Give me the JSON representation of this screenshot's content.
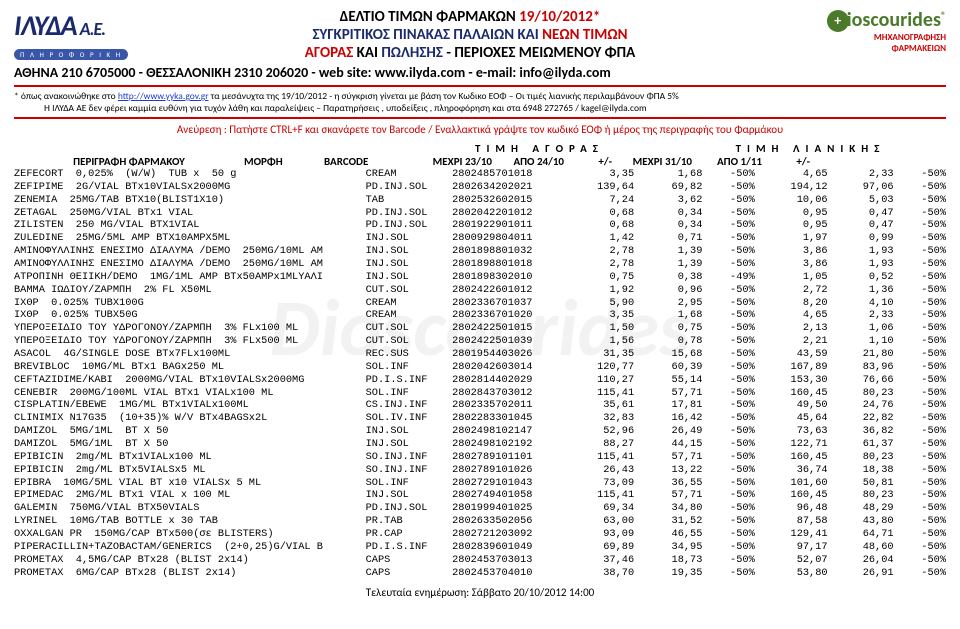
{
  "header": {
    "title_prefix": "ΔΕΛΤΙΟ ΤΙΜΩΝ ΦΑΡΜΑΚΩΝ ",
    "title_date": "19/10/2012*",
    "line2a": "ΣΥΓΚΡΙΤΙΚΟΣ ΠΙΝΑΚΑΣ ΠΑΛΑΙΩΝ",
    "line2b": " ΚΑΙ ",
    "line2c": "ΝΕΩΝ ΤΙΜΩΝ",
    "line3a": "ΑΓΟΡΑΣ",
    "line3b": " ΚΑΙ ",
    "line3c": "ΠΩΛΗΣΗΣ",
    "line3d": "  -  ΠΕΡΙΟΧΕΣ ΜΕΙΩΜΕΝΟΥ ΦΠΑ",
    "contact": "ΑΘΗΝΑ 210 6705000  -  ΘΕΣΣΑΛΟΝΙΚΗ 2310 206020  -  web site: www.ilyda.com  -  e-mail: info@ilyda.com",
    "left_logo": "ΙΛΥΔΑ",
    "left_logo_ae": " Α.Ε.",
    "left_logo_tag": "Π Λ Η Ρ Ο Φ Ο Ρ Ι Κ Η",
    "right_logo": "ioscourides",
    "right_sub1": "ΜΗΧΑΝΟΓΡΑΦΗΣΗ",
    "right_sub2": "ΦΑΡΜΑΚΕΙΩΝ"
  },
  "disclaimer": {
    "l1a": "* όπως ανακοινώθηκε στο ",
    "l1link": "http://www.yyka.gov.gr",
    "l1b": " τα μεσάνυχτα της 19/10/2012 - η σύγκριση γίνεται με βάση τον Κωδικο ΕΟΦ – Οι τιμές λιανικής περιλαμβάνουν ΦΠΑ 5%",
    "l2": "Η ΙΛΥΔΑ ΑΕ δεν φέρει καμμία ευθύνη για τυχόν λάθη και παραλείψεις  –  Παρατηρήσεις , υποδείξεις , πληροφόρηση και στα  6948 272765 / kagel@ilyda.com"
  },
  "search_line": "Ανεύρεση :   Πατήστε CTRL+F  και σκανάρετε τον Barcode   /   Εναλλακτικά γράψτε τον κωδικό ΕΟΦ ή μέρος της περιγραφής του Φαρμάκου",
  "groups": {
    "g1": "ΤΙΜΗ  ΑΓΟΡΑΣ",
    "g2": "ΤΙΜΗ  ΛΙΑΝΙΚΗΣ"
  },
  "columns": [
    "ΠΕΡΙΓΡΑΦΗ  ΦΑΡΜΑΚΟΥ",
    "ΜΟΡΦΗ",
    "BARCODE",
    "ΜΕΧΡΙ 23/10",
    "ΑΠΟ 24/10",
    "+/-",
    "ΜΕΧΡΙ 31/10",
    "ΑΠΟ 1/11",
    "+/-"
  ],
  "rows": [
    [
      "ZEFECORT  0,025%  (W/W)  TUB x  50 g",
      "CREAM",
      "2802485701018",
      "3,35",
      "1,68",
      "-50%",
      "4,65",
      "2,33",
      "-50%"
    ],
    [
      "ZEFIPIME  2G/VIAL BTx10VIALSx2000MG",
      "PD.INJ.SOL",
      "2802634202021",
      "139,64",
      "69,82",
      "-50%",
      "194,12",
      "97,06",
      "-50%"
    ],
    [
      "ZENEMIA  25MG/TAB BTX10(BLIST1X10)",
      "TAB",
      "2802532602015",
      "7,24",
      "3,62",
      "-50%",
      "10,06",
      "5,03",
      "-50%"
    ],
    [
      "ZETAGAL  250MG/VIAL BTx1 VIAL",
      "PD.INJ.SOL",
      "2802042201012",
      "0,68",
      "0,34",
      "-50%",
      "0,95",
      "0,47",
      "-50%"
    ],
    [
      "ZILISTEN  250 MG/VIAL BTX1VIAL",
      "PD.INJ.SOL",
      "2801922901011",
      "0,68",
      "0,34",
      "-50%",
      "0,95",
      "0,47",
      "-50%"
    ],
    [
      "ZULEDINE  25MG/5ML AMP BTX10AMPX5ML",
      "INJ.SOL",
      "2800929804011",
      "1,42",
      "0,71",
      "-50%",
      "1,97",
      "0,99",
      "-50%"
    ],
    [
      "ΑΜΙΝΟΦΥΛΛΙΝΗΣ ΕΝΕΣΙΜΟ ΔΙΑΛΥΜΑ /DEMO  250MG/10ML AM",
      "INJ.SOL",
      "2801898801032",
      "2,78",
      "1,39",
      "-50%",
      "3,86",
      "1,93",
      "-50%"
    ],
    [
      "ΑΜΙΝΟΦΥΛΛΙΝΗΣ ΕΝΕΣΙΜΟ ΔΙΑΛΥΜΑ /DEMO  250MG/10ML AM",
      "INJ.SOL",
      "2801898801018",
      "2,78",
      "1,39",
      "-50%",
      "3,86",
      "1,93",
      "-50%"
    ],
    [
      "ΑΤΡΟΠΙΝΗ ΘΕΙΙΚΗ/DEMO  1MG/1ML AMP BTx50AMPx1MLΥΑΛΙ",
      "INJ.SOL",
      "2801898302010",
      "0,75",
      "0,38",
      "-49%",
      "1,05",
      "0,52",
      "-50%"
    ],
    [
      "ΒΑΜΜΑ ΙΩΔΙΟΥ/ΖΑΡΜΠΗ  2% FL X50ML",
      "CUT.SOL",
      "2802422601012",
      "1,92",
      "0,96",
      "-50%",
      "2,72",
      "1,36",
      "-50%"
    ],
    [
      "ΙΧΘΡ  0.025% TUBX100G",
      "CREAM",
      "2802336701037",
      "5,90",
      "2,95",
      "-50%",
      "8,20",
      "4,10",
      "-50%"
    ],
    [
      "ΙΧΘΡ  0.025% TUBX50G",
      "CREAM",
      "2802336701020",
      "3,35",
      "1,68",
      "-50%",
      "4,65",
      "2,33",
      "-50%"
    ],
    [
      "ΥΠΕΡΟΞΕΙΔΙΟ ΤΟΥ ΥΔΡΟΓΟΝΟΥ/ΖΑΡΜΠΗ  3% FLx100 ML",
      "CUT.SOL",
      "2802422501015",
      "1,50",
      "0,75",
      "-50%",
      "2,13",
      "1,06",
      "-50%"
    ],
    [
      "ΥΠΕΡΟΞΕΙΔΙΟ ΤΟΥ ΥΔΡΟΓΟΝΟΥ/ΖΑΡΜΠΗ  3% FLx500 ML",
      "CUT.SOL",
      "2802422501039",
      "1,56",
      "0,78",
      "-50%",
      "2,21",
      "1,10",
      "-50%"
    ],
    [
      "ASACOL  4G/SINGLE DOSE BTx7FLx100ML",
      "REC.SUS",
      "2801954403026",
      "31,35",
      "15,68",
      "-50%",
      "43,59",
      "21,80",
      "-50%"
    ],
    [
      "BREVIBLOC  10MG/ML BTx1 BAGx250 ML",
      "SOL.INF",
      "2802042603014",
      "120,77",
      "60,39",
      "-50%",
      "167,89",
      "83,96",
      "-50%"
    ],
    [
      "CEFTAZIDIME/KABI  2000MG/VIAL BTx10VIALSx2000MG",
      "PD.I.S.INF",
      "2802814402029",
      "110,27",
      "55,14",
      "-50%",
      "153,30",
      "76,66",
      "-50%"
    ],
    [
      "CENEBIR  200MG/100ML VIAL BTx1 VIALx100 ML",
      "SOL.INF",
      "2802843703012",
      "115,41",
      "57,71",
      "-50%",
      "160,45",
      "80,23",
      "-50%"
    ],
    [
      "CISPLATIN/EBEWE  1MG/ML BTx1VIALx100ML",
      "CS.INJ.INF",
      "2802335702011",
      "35,61",
      "17,81",
      "-50%",
      "49,50",
      "24,76",
      "-50%"
    ],
    [
      "CLINIMIX N17G35  (10+35)% W/V BTx4BAGSx2L",
      "SOL.IV.INF",
      "2802283301045",
      "32,83",
      "16,42",
      "-50%",
      "45,64",
      "22,82",
      "-50%"
    ],
    [
      "DAMIZOL  5MG/1ML  BT X 50",
      "INJ.SOL",
      "2802498102147",
      "52,96",
      "26,49",
      "-50%",
      "73,63",
      "36,82",
      "-50%"
    ],
    [
      "DAMIZOL  5MG/1ML  BT X 50",
      "INJ.SOL",
      "2802498102192",
      "88,27",
      "44,15",
      "-50%",
      "122,71",
      "61,37",
      "-50%"
    ],
    [
      "EPIBICIN  2mg/ML BTx1VIALx100 ML",
      "SO.INJ.INF",
      "2802789101101",
      "115,41",
      "57,71",
      "-50%",
      "160,45",
      "80,23",
      "-50%"
    ],
    [
      "EPIBICIN  2mg/ML BTx5VIALSx5 ML",
      "SO.INJ.INF",
      "2802789101026",
      "26,43",
      "13,22",
      "-50%",
      "36,74",
      "18,38",
      "-50%"
    ],
    [
      "EPIBRA  10MG/5ML VIAL BT x10 VIALSx 5 ML",
      "SOL.INF",
      "2802729101043",
      "73,09",
      "36,55",
      "-50%",
      "101,60",
      "50,81",
      "-50%"
    ],
    [
      "EPIMEDAC  2MG/ML BTx1 VIAL x 100 ML",
      "INJ.SOL",
      "2802749401058",
      "115,41",
      "57,71",
      "-50%",
      "160,45",
      "80,23",
      "-50%"
    ],
    [
      "GALEMIN  750MG/VIAL BTX50VIALS",
      "PD.INJ.SOL",
      "2801999401025",
      "69,34",
      "34,80",
      "-50%",
      "96,48",
      "48,29",
      "-50%"
    ],
    [
      "LYRINEL  10MG/TAB BOTTLE x 30 TAB",
      "PR.TAB",
      "2802633502056",
      "63,00",
      "31,52",
      "-50%",
      "87,58",
      "43,80",
      "-50%"
    ],
    [
      "OXXALGAN PR  150MG/CAP BTx500(σε BLISTERS)",
      "PR.CAP",
      "2802721203092",
      "93,09",
      "46,55",
      "-50%",
      "129,41",
      "64,71",
      "-50%"
    ],
    [
      "PIPERACILLIN+TAZOBACTAM/GENERICS  (2+0,25)G/VIAL B",
      "PD.I.S.INF",
      "2802839601049",
      "69,89",
      "34,95",
      "-50%",
      "97,17",
      "48,60",
      "-50%"
    ],
    [
      "PROMETAX  4,5MG/CAP BTx28 (BLIST 2x14)",
      "CAPS",
      "2802453703013",
      "37,46",
      "18,73",
      "-50%",
      "52,07",
      "26,04",
      "-50%"
    ],
    [
      "PROMETAX  6MG/CAP BTx28 (BLIST 2x14)",
      "CAPS",
      "2802453704010",
      "38,70",
      "19,35",
      "-50%",
      "53,80",
      "26,91",
      "-50%"
    ]
  ],
  "footer": "Τελευταία ενημέρωση:  Σάββατο 20/10/2012 14:00"
}
